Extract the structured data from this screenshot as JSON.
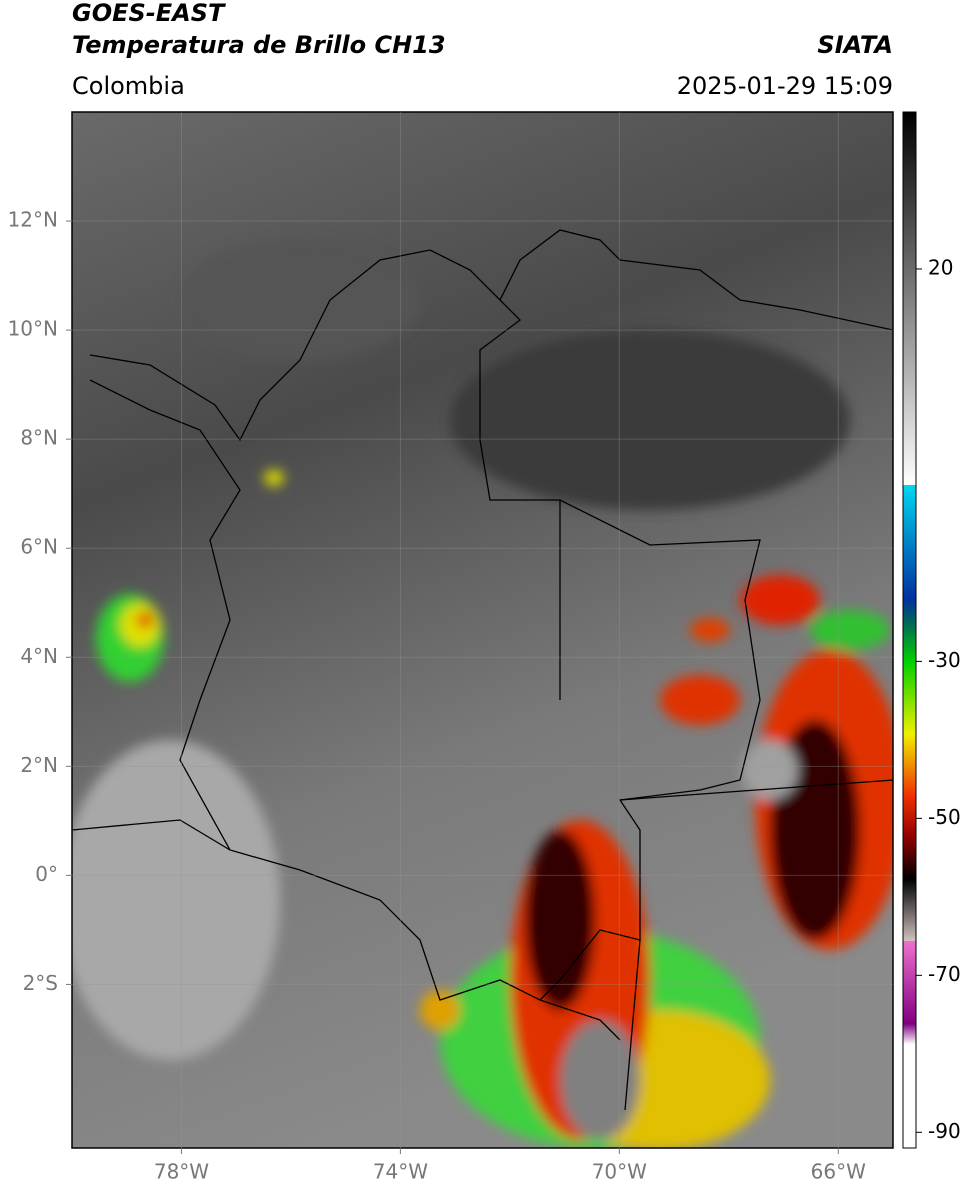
{
  "header": {
    "satellite": "GOES-EAST",
    "product": "Temperatura de Brillo CH13",
    "source": "SIATA",
    "region": "Colombia",
    "datetime": "2025-01-29 15:09"
  },
  "map": {
    "xlim": [
      -80,
      -65
    ],
    "ylim": [
      -5,
      14
    ],
    "xticks": [
      {
        "value": -78,
        "label": "78°W"
      },
      {
        "value": -74,
        "label": "74°W"
      },
      {
        "value": -70,
        "label": "70°W"
      },
      {
        "value": -66,
        "label": "66°W"
      }
    ],
    "yticks": [
      {
        "value": 12,
        "label": "12°N"
      },
      {
        "value": 10,
        "label": "10°N"
      },
      {
        "value": 8,
        "label": "8°N"
      },
      {
        "value": 6,
        "label": "6°N"
      },
      {
        "value": 4,
        "label": "4°N"
      },
      {
        "value": 2,
        "label": "2°N"
      },
      {
        "value": 0,
        "label": "0°"
      },
      {
        "value": -2,
        "label": "2°S"
      }
    ],
    "grid": true
  },
  "colorbar": {
    "lim": [
      -92,
      40
    ],
    "ticks": [
      20,
      -30,
      -50,
      -70,
      -90
    ]
  }
}
